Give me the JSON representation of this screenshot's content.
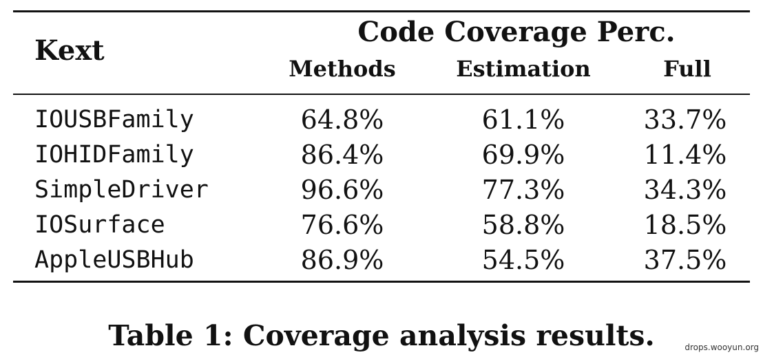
{
  "table": {
    "header": {
      "kext": "Kext",
      "group": "Code Coverage Perc.",
      "columns": [
        "Methods",
        "Estimation",
        "Full"
      ]
    },
    "rows": [
      {
        "kext": "IOUSBFamily",
        "methods": "64.8%",
        "estimation": "61.1%",
        "full": "33.7%"
      },
      {
        "kext": "IOHIDFamily",
        "methods": "86.4%",
        "estimation": "69.9%",
        "full": "11.4%"
      },
      {
        "kext": "SimpleDriver",
        "methods": "96.6%",
        "estimation": "77.3%",
        "full": "34.3%"
      },
      {
        "kext": "IOSurface",
        "methods": "76.6%",
        "estimation": "58.8%",
        "full": "18.5%"
      },
      {
        "kext": "AppleUSBHub",
        "methods": "86.9%",
        "estimation": "54.5%",
        "full": "37.5%"
      }
    ],
    "caption": "Table 1: Coverage analysis results."
  },
  "watermark": "drops.wooyun.org"
}
